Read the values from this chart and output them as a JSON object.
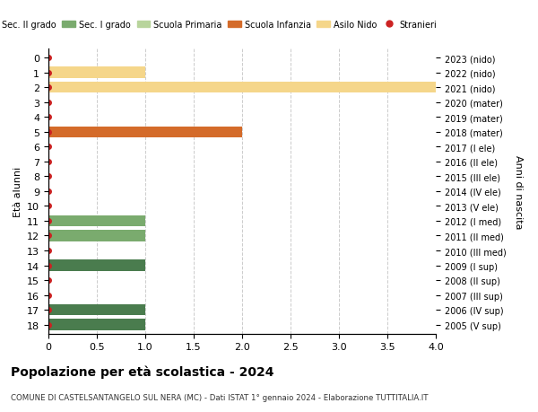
{
  "ages": [
    18,
    17,
    16,
    15,
    14,
    13,
    12,
    11,
    10,
    9,
    8,
    7,
    6,
    5,
    4,
    3,
    2,
    1,
    0
  ],
  "anni_nascita": [
    "2005 (V sup)",
    "2006 (IV sup)",
    "2007 (III sup)",
    "2008 (II sup)",
    "2009 (I sup)",
    "2010 (III med)",
    "2011 (II med)",
    "2012 (I med)",
    "2013 (V ele)",
    "2014 (IV ele)",
    "2015 (III ele)",
    "2016 (II ele)",
    "2017 (I ele)",
    "2018 (mater)",
    "2019 (mater)",
    "2020 (mater)",
    "2021 (nido)",
    "2022 (nido)",
    "2023 (nido)"
  ],
  "bars": [
    {
      "age": 18,
      "value": 1.0,
      "color": "#4a7c4e",
      "category": "Sec. II grado"
    },
    {
      "age": 17,
      "value": 1.0,
      "color": "#4a7c4e",
      "category": "Sec. II grado"
    },
    {
      "age": 14,
      "value": 1.0,
      "color": "#4a7c4e",
      "category": "Sec. II grado"
    },
    {
      "age": 12,
      "value": 1.0,
      "color": "#7aab6e",
      "category": "Sec. I grado"
    },
    {
      "age": 11,
      "value": 1.0,
      "color": "#7aab6e",
      "category": "Sec. I grado"
    },
    {
      "age": 5,
      "value": 2.0,
      "color": "#d46b2a",
      "category": "Scuola Infanzia"
    },
    {
      "age": 2,
      "value": 4.0,
      "color": "#f5d68a",
      "category": "Asilo Nido"
    },
    {
      "age": 1,
      "value": 1.0,
      "color": "#f5d68a",
      "category": "Asilo Nido"
    }
  ],
  "colors": {
    "sec2": "#4a7c4e",
    "sec1": "#7aab6e",
    "primaria": "#b8d49c",
    "infanzia": "#d46b2a",
    "nido": "#f5d68a",
    "stranieri": "#cc2222"
  },
  "ylabel_left": "Età alunni",
  "ylabel_right": "Anni di nascita",
  "xlim": [
    0,
    4.0
  ],
  "xticks": [
    0,
    0.5,
    1.0,
    1.5,
    2.0,
    2.5,
    3.0,
    3.5,
    4.0
  ],
  "title": "Popolazione per età scolastica - 2024",
  "subtitle": "COMUNE DI CASTELSANTANGELO SUL NERA (MC) - Dati ISTAT 1° gennaio 2024 - Elaborazione TUTTITALIA.IT",
  "background_color": "#ffffff",
  "grid_color": "#cccccc"
}
